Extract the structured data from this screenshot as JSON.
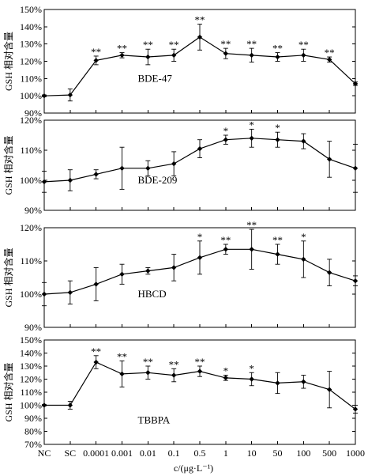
{
  "chart_data": [
    {
      "type": "line",
      "annotation": "BDE-47",
      "ylabel": "GSH 相对含量",
      "ylim": [
        90,
        150
      ],
      "yticks": [
        "90%",
        "100%",
        "110%",
        "120%",
        "130%",
        "140%",
        "150%"
      ],
      "yticks_values": [
        90,
        100,
        110,
        120,
        130,
        140,
        150
      ],
      "values": [
        100,
        100.5,
        120.5,
        123.5,
        122.5,
        123.5,
        134,
        124.5,
        123.5,
        122.5,
        123.5,
        121,
        107
      ],
      "errors": [
        0.5,
        3.5,
        2.5,
        1.5,
        4.5,
        3.5,
        7.5,
        3,
        4,
        2.5,
        3.5,
        1.5,
        1
      ],
      "significance": [
        "",
        "",
        "**",
        "**",
        "**",
        "**",
        "**",
        "**",
        "**",
        "**",
        "**",
        "**",
        ""
      ]
    },
    {
      "type": "line",
      "annotation": "BDE-209",
      "ylabel": "GSH 相对含量",
      "ylim": [
        90,
        120
      ],
      "yticks": [
        "90%",
        "100%",
        "110%",
        "120%"
      ],
      "yticks_values": [
        90,
        100,
        110,
        120
      ],
      "values": [
        99.5,
        100,
        102,
        104,
        104,
        105.5,
        110.5,
        113.5,
        114,
        113.5,
        113,
        107,
        104
      ],
      "errors": [
        3.5,
        3.5,
        1.5,
        7,
        2.5,
        4,
        3,
        1.5,
        3,
        2.5,
        2.5,
        6,
        8
      ],
      "significance": [
        "",
        "",
        "",
        "",
        "",
        "",
        "",
        "*",
        "*",
        "*",
        "",
        "",
        ""
      ]
    },
    {
      "type": "line",
      "annotation": "HBCD",
      "ylabel": "GSH 相对含量",
      "ylim": [
        90,
        120
      ],
      "yticks": [
        "90%",
        "100%",
        "110%",
        "120%"
      ],
      "yticks_values": [
        90,
        100,
        110,
        120
      ],
      "values": [
        100,
        100.5,
        103,
        106,
        107,
        108,
        111,
        113.5,
        113.5,
        112,
        110.5,
        106.5,
        104
      ],
      "errors": [
        3.5,
        3.5,
        5,
        3,
        1,
        4,
        5,
        1.5,
        6,
        3,
        5.5,
        4,
        1.5
      ],
      "significance": [
        "",
        "",
        "",
        "",
        "",
        "",
        "*",
        "**",
        "**",
        "**",
        "*",
        "",
        ""
      ]
    },
    {
      "type": "line",
      "annotation": "TBBPA",
      "ylabel": "GSH 相对含量",
      "ylim": [
        70,
        150
      ],
      "yticks": [
        "70%",
        "80%",
        "90%",
        "100%",
        "110%",
        "120%",
        "130%",
        "140%",
        "150%"
      ],
      "yticks_values": [
        70,
        80,
        90,
        100,
        110,
        120,
        130,
        140,
        150
      ],
      "values": [
        100,
        100,
        133,
        124,
        125,
        123,
        126,
        121,
        120,
        117,
        118,
        112,
        97
      ],
      "errors": [
        0.5,
        3,
        5,
        10,
        5,
        5,
        4,
        2,
        5,
        8,
        5,
        14,
        3
      ],
      "significance": [
        "",
        "",
        "**",
        "**",
        "**",
        "**",
        "**",
        "*",
        "*",
        "",
        "",
        "",
        ""
      ]
    }
  ],
  "x_categories": [
    "NC",
    "SC",
    "0.0001",
    "0.001",
    "0.01",
    "0.1",
    "0.5",
    "1",
    "10",
    "50",
    "100",
    "500",
    "1000"
  ],
  "xlabel": "c/(μg·L⁻¹)"
}
